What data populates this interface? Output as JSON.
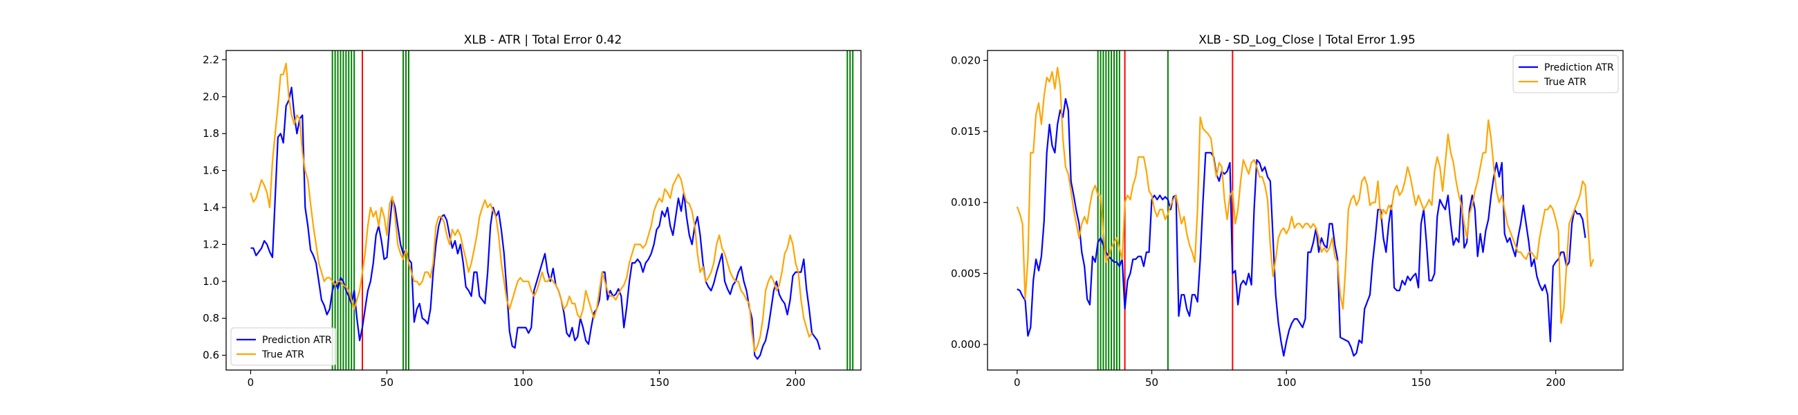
{
  "chart_data": [
    {
      "type": "line",
      "title": "XLB - ATR | Total Error 0.42",
      "xlabel": "",
      "ylabel": "",
      "xlim": [
        -9,
        224
      ],
      "ylim": [
        0.52,
        2.25
      ],
      "xticks": [
        0,
        50,
        100,
        150,
        200
      ],
      "yticks": [
        0.6,
        0.8,
        1.0,
        1.2,
        1.4,
        1.6,
        1.8,
        2.0,
        2.2
      ],
      "ytick_labels": [
        "0.6",
        "0.8",
        "1.0",
        "1.2",
        "1.4",
        "1.6",
        "1.8",
        "2.0",
        "2.2"
      ],
      "grid": false,
      "legend": "lower-left",
      "vlines_green": [
        30,
        31,
        32,
        33,
        34,
        35,
        36,
        37,
        38,
        56,
        57,
        58,
        219,
        220,
        221
      ],
      "vlines_red": [
        41
      ],
      "series": [
        {
          "name": "Prediction ATR",
          "color": "#0000ff",
          "values": [
            1.18,
            1.18,
            1.14,
            1.16,
            1.18,
            1.22,
            1.2,
            1.16,
            1.13,
            1.45,
            1.78,
            1.8,
            1.75,
            1.95,
            1.98,
            2.05,
            1.9,
            1.8,
            1.88,
            1.9,
            1.4,
            1.3,
            1.17,
            1.14,
            1.1,
            1.0,
            0.9,
            0.87,
            0.82,
            0.85,
            0.95,
            1.0,
            0.96,
            1.02,
            1.0,
            0.95,
            0.92,
            0.88,
            0.95,
            0.8,
            0.68,
            0.75,
            0.85,
            0.95,
            1.0,
            1.1,
            1.25,
            1.3,
            1.22,
            1.12,
            1.13,
            1.3,
            1.45,
            1.4,
            1.3,
            1.2,
            1.15,
            1.17,
            1.12,
            1.1,
            0.78,
            0.85,
            0.88,
            0.8,
            0.79,
            0.77,
            0.85,
            1.05,
            1.2,
            1.3,
            1.35,
            1.36,
            1.33,
            1.25,
            1.18,
            1.22,
            1.15,
            1.2,
            1.1,
            0.97,
            0.95,
            0.92,
            1.05,
            1.05,
            0.92,
            0.9,
            0.88,
            1.05,
            1.3,
            1.4,
            1.35,
            1.38,
            1.28,
            1.15,
            0.95,
            0.73,
            0.65,
            0.64,
            0.75,
            0.75,
            0.75,
            0.75,
            0.72,
            0.75,
            0.95,
            1.0,
            1.05,
            1.1,
            1.15,
            1.05,
            1.0,
            1.07,
            0.98,
            0.95,
            0.9,
            0.83,
            0.72,
            0.7,
            0.75,
            0.68,
            0.7,
            0.8,
            0.75,
            0.68,
            0.66,
            0.75,
            0.83,
            0.85,
            0.9,
            1.05,
            1.05,
            0.9,
            0.95,
            0.92,
            0.93,
            0.96,
            0.92,
            0.75,
            0.86,
            1.0,
            1.1,
            1.1,
            1.12,
            1.1,
            1.05,
            1.1,
            1.12,
            1.15,
            1.2,
            1.28,
            1.3,
            1.38,
            1.35,
            1.4,
            1.3,
            1.25,
            1.35,
            1.45,
            1.38,
            1.48,
            1.35,
            1.25,
            1.2,
            1.3,
            1.35,
            1.25,
            1.1,
            1.0,
            0.97,
            0.95,
            0.99,
            1.05,
            1.1,
            1.15,
            1.0,
            0.96,
            0.93,
            0.98,
            1.0,
            1.05,
            1.08,
            1.0,
            0.95,
            0.86,
            0.8,
            0.6,
            0.58,
            0.6,
            0.65,
            0.68,
            0.75,
            0.85,
            0.95,
            1.0,
            0.93,
            0.9,
            0.88,
            0.82,
            0.9,
            1.03,
            1.05,
            1.05,
            1.05,
            1.12,
            0.96,
            0.85,
            0.72,
            0.7,
            0.68,
            0.63
          ]
        },
        {
          "name": "True ATR",
          "color": "#ffa500",
          "values": [
            1.48,
            1.43,
            1.45,
            1.5,
            1.55,
            1.52,
            1.48,
            1.4,
            1.65,
            1.8,
            1.95,
            2.12,
            2.12,
            2.18,
            2.0,
            1.9,
            1.85,
            1.9,
            1.88,
            1.7,
            1.6,
            1.55,
            1.42,
            1.3,
            1.2,
            1.1,
            1.05,
            1.0,
            1.02,
            1.02,
            1.0,
            0.98,
            1.0,
            1.0,
            0.98,
            0.97,
            0.95,
            0.9,
            0.85,
            0.9,
            0.95,
            1.05,
            1.15,
            1.3,
            1.4,
            1.35,
            1.38,
            1.3,
            1.4,
            1.35,
            1.25,
            1.42,
            1.46,
            1.35,
            1.2,
            1.15,
            1.12,
            1.17,
            1.1,
            1.05,
            1.0,
            1.0,
            0.98,
            1.0,
            1.05,
            1.05,
            1.02,
            1.1,
            1.3,
            1.35,
            1.35,
            1.32,
            1.25,
            1.2,
            1.28,
            1.25,
            1.28,
            1.25,
            1.18,
            1.12,
            1.05,
            1.1,
            1.17,
            1.25,
            1.35,
            1.4,
            1.44,
            1.4,
            1.42,
            1.38,
            1.35,
            1.25,
            1.1,
            1.0,
            0.9,
            0.85,
            0.9,
            0.95,
            1.0,
            1.02,
            1.0,
            1.0,
            1.0,
            0.95,
            0.92,
            0.95,
            1.0,
            1.05,
            1.0,
            1.0,
            1.02,
            1.0,
            0.98,
            0.95,
            0.9,
            0.85,
            0.87,
            0.92,
            0.88,
            0.88,
            0.82,
            0.8,
            0.85,
            0.95,
            0.9,
            0.85,
            0.8,
            0.85,
            0.95,
            1.05,
            1.0,
            0.95,
            0.92,
            0.92,
            0.9,
            0.93,
            0.96,
            0.98,
            1.02,
            1.1,
            1.15,
            1.2,
            1.2,
            1.2,
            1.18,
            1.2,
            1.25,
            1.3,
            1.38,
            1.42,
            1.45,
            1.43,
            1.5,
            1.48,
            1.45,
            1.52,
            1.55,
            1.58,
            1.55,
            1.48,
            1.43,
            1.42,
            1.38,
            1.3,
            1.15,
            1.05,
            1.08,
            1.0,
            1.02,
            1.05,
            1.1,
            1.2,
            1.25,
            1.18,
            1.15,
            1.1,
            1.05,
            1.02,
            1.0,
            1.0,
            0.95,
            0.93,
            0.9,
            0.88,
            0.72,
            0.62,
            0.65,
            0.7,
            0.8,
            0.95,
            1.0,
            1.03,
            1.0,
            0.95,
            0.98,
            1.05,
            1.15,
            1.18,
            1.25,
            1.2,
            1.1,
            1.05,
            0.9,
            0.8,
            0.75,
            0.7,
            0.72
          ]
        }
      ]
    },
    {
      "type": "line",
      "title": "XLB - SD_Log_Close | Total Error 1.95",
      "xlabel": "",
      "ylabel": "",
      "xlim": [
        -11,
        225
      ],
      "ylim": [
        -0.0018,
        0.0207
      ],
      "xticks": [
        0,
        50,
        100,
        150,
        200
      ],
      "yticks": [
        0.0,
        0.005,
        0.01,
        0.015,
        0.02
      ],
      "ytick_labels": [
        "0.000",
        "0.005",
        "0.010",
        "0.015",
        "0.020"
      ],
      "grid": false,
      "legend": "upper-right",
      "vlines_green": [
        30,
        31,
        32,
        33,
        34,
        35,
        36,
        37,
        38,
        56
      ],
      "vlines_red": [
        40,
        80
      ],
      "series": [
        {
          "name": "Prediction ATR",
          "color": "#0000ff",
          "values": [
            0.0039,
            0.0038,
            0.0034,
            0.0031,
            0.0006,
            0.0012,
            0.0045,
            0.006,
            0.0052,
            0.0062,
            0.0087,
            0.0135,
            0.0155,
            0.014,
            0.0135,
            0.0155,
            0.0165,
            0.016,
            0.0173,
            0.0165,
            0.0115,
            0.0105,
            0.0094,
            0.0085,
            0.0065,
            0.0055,
            0.0032,
            0.0028,
            0.0062,
            0.0058,
            0.0072,
            0.0075,
            0.007,
            0.0065,
            0.0062,
            0.006,
            0.0058,
            0.0058,
            0.0055,
            0.006,
            0.0025,
            0.0045,
            0.005,
            0.006,
            0.006,
            0.0062,
            0.0062,
            0.0055,
            0.0065,
            0.0065,
            0.0102,
            0.0105,
            0.0102,
            0.0105,
            0.0102,
            0.0104,
            0.0102,
            0.0095,
            0.0104,
            0.0105,
            0.002,
            0.0035,
            0.0035,
            0.0025,
            0.002,
            0.0035,
            0.0035,
            0.003,
            0.006,
            0.01,
            0.0135,
            0.0135,
            0.0135,
            0.0132,
            0.012,
            0.0115,
            0.0122,
            0.012,
            0.0122,
            0.0128,
            0.005,
            0.0052,
            0.0028,
            0.0042,
            0.0045,
            0.0042,
            0.005,
            0.0042,
            0.0095,
            0.013,
            0.0128,
            0.0122,
            0.0125,
            0.0118,
            0.0115,
            0.0075,
            0.0035,
            0.0015,
            0.0002,
            -0.0008,
            0.0002,
            0.001,
            0.0015,
            0.0018,
            0.0018,
            0.0015,
            0.0012,
            0.0018,
            0.0065,
            0.0065,
            0.0072,
            0.0082,
            0.0065,
            0.0075,
            0.007,
            0.0068,
            0.0085,
            0.0085,
            0.007,
            0.006,
            0.0005,
            0.0004,
            0.0003,
            0.0002,
            -0.0002,
            -0.0008,
            -0.0006,
            0.0003,
            0.0001,
            0.0025,
            0.003,
            0.0035,
            0.0058,
            0.0075,
            0.0095,
            0.0095,
            0.0075,
            0.0065,
            0.0085,
            0.0098,
            0.004,
            0.0038,
            0.0038,
            0.0045,
            0.0042,
            0.0048,
            0.0045,
            0.0048,
            0.005,
            0.004,
            0.0085,
            0.0095,
            0.0072,
            0.0045,
            0.0045,
            0.005,
            0.009,
            0.0102,
            0.0098,
            0.0095,
            0.0105,
            0.0085,
            0.007,
            0.0075,
            0.0072,
            0.0105,
            0.0068,
            0.0072,
            0.0095,
            0.0105,
            0.0095,
            0.0062,
            0.0078,
            0.0065,
            0.008,
            0.0088,
            0.0105,
            0.0118,
            0.0128,
            0.0118,
            0.0128,
            0.0078,
            0.0072,
            0.0075,
            0.0068,
            0.0062,
            0.0075,
            0.0085,
            0.0098,
            0.0085,
            0.0072,
            0.0055,
            0.006,
            0.0048,
            0.0042,
            0.0038,
            0.0042,
            0.0035,
            0.0002,
            0.0055,
            0.0058,
            0.006,
            0.0065,
            0.0065,
            0.0055,
            0.0058,
            0.0085,
            0.0095,
            0.0092,
            0.0092,
            0.0088,
            0.0075
          ]
        },
        {
          "name": "True ATR",
          "color": "#ffa500",
          "values": [
            0.0097,
            0.0092,
            0.0085,
            0.0032,
            0.006,
            0.0135,
            0.0135,
            0.0162,
            0.017,
            0.0155,
            0.0175,
            0.0188,
            0.0185,
            0.0192,
            0.018,
            0.0195,
            0.0182,
            0.0145,
            0.0125,
            0.012,
            0.0108,
            0.0095,
            0.0085,
            0.0075,
            0.0085,
            0.009,
            0.0085,
            0.0098,
            0.0108,
            0.0112,
            0.0105,
            0.0105,
            0.008,
            0.0058,
            0.0062,
            0.0068,
            0.0072,
            0.0075,
            0.0068,
            0.006,
            0.01,
            0.0105,
            0.0102,
            0.0112,
            0.0118,
            0.0132,
            0.0132,
            0.0132,
            0.0122,
            0.0108,
            0.0105,
            0.0095,
            0.009,
            0.0095,
            0.0095,
            0.0088,
            0.0092,
            0.0098,
            0.0102,
            0.0105,
            0.0095,
            0.0085,
            0.009,
            0.0078,
            0.007,
            0.0065,
            0.0058,
            0.0095,
            0.016,
            0.0152,
            0.015,
            0.0148,
            0.0145,
            0.013,
            0.0118,
            0.0128,
            0.0125,
            0.0102,
            0.0088,
            0.0105,
            0.0108,
            0.0085,
            0.0095,
            0.0115,
            0.013,
            0.0125,
            0.012,
            0.0128,
            0.013,
            0.0125,
            0.0118,
            0.0118,
            0.0112,
            0.0102,
            0.007,
            0.0048,
            0.006,
            0.0075,
            0.008,
            0.0082,
            0.0078,
            0.0082,
            0.009,
            0.0082,
            0.0085,
            0.0085,
            0.0082,
            0.0085,
            0.0085,
            0.0082,
            0.0085,
            0.0082,
            0.0075,
            0.0065,
            0.0068,
            0.0065,
            0.0068,
            0.0075,
            0.0062,
            0.0058,
            0.0035,
            0.0025,
            0.0055,
            0.0095,
            0.0102,
            0.0105,
            0.0098,
            0.0102,
            0.0115,
            0.0118,
            0.0112,
            0.0098,
            0.01,
            0.01,
            0.0115,
            0.0088,
            0.0095,
            0.0092,
            0.0098,
            0.0095,
            0.0108,
            0.0112,
            0.0105,
            0.0108,
            0.0115,
            0.0125,
            0.0118,
            0.0108,
            0.0098,
            0.0105,
            0.01,
            0.0095,
            0.0098,
            0.0102,
            0.0098,
            0.0122,
            0.0132,
            0.0125,
            0.0108,
            0.0128,
            0.0148,
            0.0135,
            0.0128,
            0.0115,
            0.0105,
            0.0098,
            0.0085,
            0.0075,
            0.0092,
            0.0098,
            0.0108,
            0.0115,
            0.0125,
            0.0135,
            0.0135,
            0.0158,
            0.0145,
            0.0125,
            0.0108,
            0.01,
            0.0105,
            0.0095,
            0.0085,
            0.008,
            0.0075,
            0.007,
            0.0065,
            0.0065,
            0.0062,
            0.006,
            0.0065,
            0.0065,
            0.0062,
            0.006,
            0.0075,
            0.0085,
            0.0095,
            0.0095,
            0.0098,
            0.0095,
            0.0088,
            0.008,
            0.0015,
            0.0025,
            0.0055,
            0.0085,
            0.009,
            0.0095,
            0.01,
            0.0105,
            0.0115,
            0.0112,
            0.0082,
            0.0055,
            0.006
          ]
        }
      ]
    }
  ]
}
